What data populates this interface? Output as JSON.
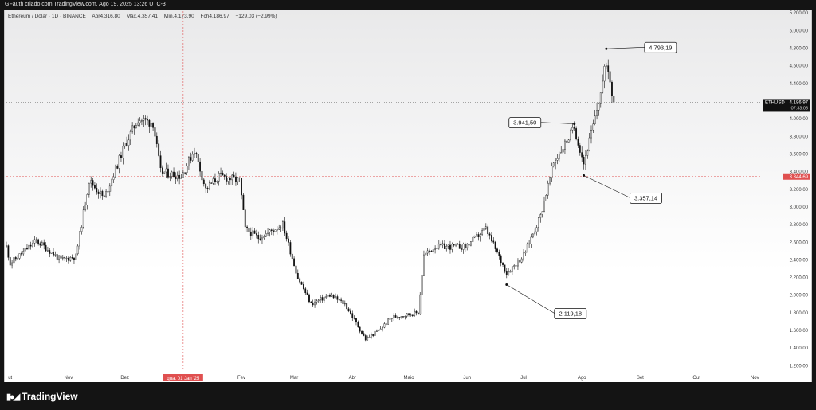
{
  "header": {
    "credit": "GFauth criado com TradingView.com, Ago 19, 2025 13:26 UTC-3"
  },
  "legend": {
    "symbol": "Ethereum / Dólar · 1D · BINANCE",
    "open": "Abr4.316,80",
    "high": "Máx.4.357,41",
    "low": "Mín.4.173,90",
    "close": "Fch4.186,97",
    "change": "−129,03 (−2,99%)"
  },
  "footer": {
    "brand": "TradingView",
    "logo_icon": "tradingview-logo-icon"
  },
  "colors": {
    "up": "#ffffff",
    "down": "#111111",
    "last_price_badge": "#111111",
    "crosshair": "#e05050",
    "callout_border": "#111111"
  },
  "chart_data": {
    "type": "candlestick",
    "symbol": "ETHUSD",
    "grid": false,
    "y_axis": {
      "ticks": [
        "5.200,00",
        "5.000,00",
        "4.800,00",
        "4.600,00",
        "4.400,00",
        "4.200,00",
        "4.000,00",
        "3.800,00",
        "3.600,00",
        "3.400,00",
        "3.200,00",
        "3.000,00",
        "2.800,00",
        "2.600,00",
        "2.400,00",
        "2.200,00",
        "2.000,00",
        "1.800,00",
        "1.600,00",
        "1.400,00",
        "1.200,00"
      ],
      "tick_values": [
        5200,
        5000,
        4800,
        4600,
        4400,
        4200,
        4000,
        3800,
        3600,
        3400,
        3200,
        3000,
        2800,
        2600,
        2400,
        2200,
        2000,
        1800,
        1600,
        1400,
        1200
      ],
      "range": [
        1140,
        5220
      ]
    },
    "x_axis": {
      "ticks": [
        "ut",
        "Nov",
        "Dez",
        "Fev",
        "Mar",
        "Abr",
        "Maio",
        "Jun",
        "Jul",
        "Ago",
        "Set",
        "Out",
        "Nov"
      ],
      "tick_dates": [
        "2024-10-01",
        "2024-11-01",
        "2024-12-01",
        "2025-02-01",
        "2025-03-01",
        "2025-04-01",
        "2025-05-01",
        "2025-06-01",
        "2025-07-01",
        "2025-08-01",
        "2025-09-01",
        "2025-10-01",
        "2025-11-01"
      ],
      "range": [
        "2024-09-29",
        "2025-11-14"
      ]
    },
    "last_price": {
      "value": 4186.97,
      "label": "ETHUSD",
      "price_text": "4.186,97",
      "countdown": "07:33:05"
    },
    "crosshair": {
      "date": "2025-01-01",
      "date_label": "qua. 01 Jan '25",
      "value": 3344.69,
      "value_label": "3.344,69"
    },
    "annotations": [
      {
        "label": "4.793,19",
        "date": "2025-08-14",
        "value": 4793.19
      },
      {
        "label": "3.941,50",
        "date": "2025-07-28",
        "value": 3941.5
      },
      {
        "label": "3.357,14",
        "date": "2025-08-02",
        "value": 3357.14
      },
      {
        "label": "2.119,18",
        "date": "2025-06-22",
        "value": 2119.18
      }
    ],
    "key_points": [
      {
        "date": "2024-09-29",
        "close": 2550
      },
      {
        "date": "2024-10-01",
        "close": 2360
      },
      {
        "date": "2024-10-15",
        "close": 2620
      },
      {
        "date": "2024-10-28",
        "close": 2400
      },
      {
        "date": "2024-11-05",
        "close": 2440
      },
      {
        "date": "2024-11-12",
        "close": 3300
      },
      {
        "date": "2024-11-20",
        "close": 3100
      },
      {
        "date": "2024-12-01",
        "close": 3700
      },
      {
        "date": "2024-12-08",
        "close": 4000
      },
      {
        "date": "2024-12-16",
        "close": 3950
      },
      {
        "date": "2024-12-20",
        "close": 3400
      },
      {
        "date": "2024-12-31",
        "close": 3350
      },
      {
        "date": "2025-01-07",
        "close": 3650
      },
      {
        "date": "2025-01-13",
        "close": 3200
      },
      {
        "date": "2025-01-20",
        "close": 3350
      },
      {
        "date": "2025-01-31",
        "close": 3300
      },
      {
        "date": "2025-02-03",
        "close": 2750
      },
      {
        "date": "2025-02-10",
        "close": 2650
      },
      {
        "date": "2025-02-23",
        "close": 2800
      },
      {
        "date": "2025-03-03",
        "close": 2200
      },
      {
        "date": "2025-03-10",
        "close": 1900
      },
      {
        "date": "2025-03-20",
        "close": 2000
      },
      {
        "date": "2025-03-28",
        "close": 1900
      },
      {
        "date": "2025-04-08",
        "close": 1500
      },
      {
        "date": "2025-04-15",
        "close": 1600
      },
      {
        "date": "2025-04-22",
        "close": 1750
      },
      {
        "date": "2025-05-06",
        "close": 1800
      },
      {
        "date": "2025-05-09",
        "close": 2450
      },
      {
        "date": "2025-05-15",
        "close": 2550
      },
      {
        "date": "2025-05-31",
        "close": 2550
      },
      {
        "date": "2025-06-11",
        "close": 2750
      },
      {
        "date": "2025-06-22",
        "close": 2250
      },
      {
        "date": "2025-07-01",
        "close": 2450
      },
      {
        "date": "2025-07-10",
        "close": 2900
      },
      {
        "date": "2025-07-17",
        "close": 3500
      },
      {
        "date": "2025-07-28",
        "close": 3900
      },
      {
        "date": "2025-08-02",
        "close": 3500
      },
      {
        "date": "2025-08-08",
        "close": 4000
      },
      {
        "date": "2025-08-11",
        "close": 4300
      },
      {
        "date": "2025-08-14",
        "close": 4650
      },
      {
        "date": "2025-08-16",
        "close": 4450
      },
      {
        "date": "2025-08-18",
        "close": 4186.97
      }
    ]
  }
}
